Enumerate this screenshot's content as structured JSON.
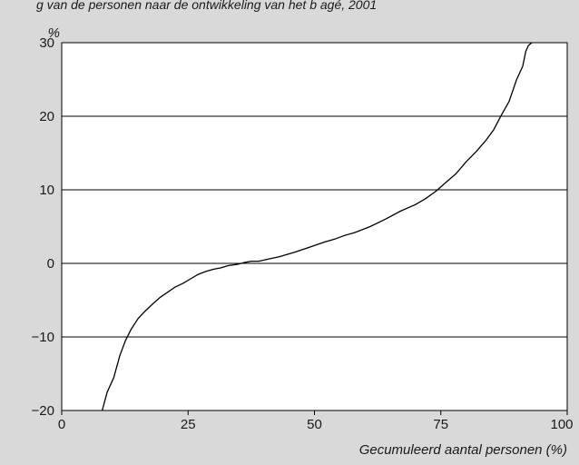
{
  "caption_fragment": "g van de personen naar de ontwikkeling van het b  agé, 2001",
  "chart_data": {
    "type": "line",
    "title": "",
    "xlabel": "Gecumuleerd aantal personen (%)",
    "ylabel": "%",
    "xlim": [
      0,
      100
    ],
    "ylim": [
      -20,
      30
    ],
    "x_ticks": [
      0,
      25,
      50,
      75,
      100
    ],
    "x_tick_labels": [
      "0",
      "25",
      "50",
      "75",
      "100"
    ],
    "y_ticks": [
      -20,
      -10,
      0,
      10,
      20,
      30
    ],
    "y_tick_labels": [
      "−20",
      "−10",
      "0",
      "10",
      "20",
      "30"
    ],
    "grid": "horizontal",
    "legend": "none",
    "series": [
      {
        "line_color": "#000000",
        "x": [
          8.0,
          9.0,
          10.3,
          11.5,
          12.6,
          13.7,
          15.1,
          16.5,
          18.0,
          19.5,
          21.0,
          22.5,
          24.0,
          25.5,
          27.0,
          28.5,
          30.0,
          31.5,
          33.0,
          34.0,
          35.0,
          36.0,
          37.5,
          39.0,
          41.0,
          43.0,
          46.0,
          49.0,
          52.0,
          54.0,
          56.0,
          58.0,
          61.0,
          64.0,
          67.0,
          70.0,
          72.0,
          74.0,
          76.0,
          78.0,
          80.0,
          82.0,
          84.0,
          85.5,
          87.0,
          88.5,
          90.0,
          91.2,
          91.8,
          92.3,
          93.0
        ],
        "y": [
          -20.0,
          -17.5,
          -15.5,
          -12.5,
          -10.5,
          -9.0,
          -7.5,
          -6.5,
          -5.5,
          -4.6,
          -3.9,
          -3.2,
          -2.7,
          -2.1,
          -1.5,
          -1.1,
          -0.8,
          -0.6,
          -0.3,
          -0.2,
          -0.1,
          0.1,
          0.3,
          0.3,
          0.6,
          0.9,
          1.5,
          2.2,
          2.9,
          3.3,
          3.8,
          4.2,
          5.0,
          6.0,
          7.1,
          8.0,
          8.8,
          9.8,
          11.0,
          12.2,
          13.8,
          15.2,
          16.8,
          18.2,
          20.2,
          22.0,
          25.0,
          26.8,
          28.8,
          29.6,
          30.0
        ]
      }
    ]
  }
}
